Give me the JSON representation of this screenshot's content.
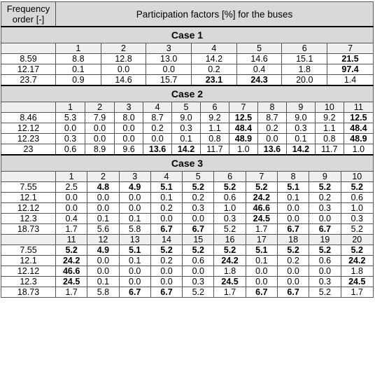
{
  "header": {
    "freq_col": "Frequency order [-]",
    "main": "Participation factors [%] for the buses"
  },
  "cases": [
    {
      "title": "Case 1",
      "blocks": [
        {
          "buses": [
            "1",
            "2",
            "3",
            "4",
            "5",
            "6",
            "7"
          ],
          "rows": [
            {
              "freq": "8.59",
              "values": [
                "8.8",
                "12.8",
                "13.0",
                "14.2",
                "14.6",
                "15.1",
                "21.5"
              ],
              "bold": [
                6
              ]
            },
            {
              "freq": "12.17",
              "values": [
                "0.1",
                "0.0",
                "0.0",
                "0.2",
                "0.4",
                "1.8",
                "97.4"
              ],
              "bold": [
                6
              ]
            },
            {
              "freq": "23.7",
              "values": [
                "0.9",
                "14.6",
                "15.7",
                "23.1",
                "24.3",
                "20.0",
                "1.4"
              ],
              "bold": [
                3,
                4
              ]
            }
          ]
        }
      ]
    },
    {
      "title": "Case 2",
      "blocks": [
        {
          "buses": [
            "1",
            "2",
            "3",
            "4",
            "5",
            "6",
            "7",
            "8",
            "9",
            "10",
            "11"
          ],
          "rows": [
            {
              "freq": "8.46",
              "values": [
                "5.3",
                "7.9",
                "8.0",
                "8.7",
                "9.0",
                "9.2",
                "12.5",
                "8.7",
                "9.0",
                "9.2",
                "12.5"
              ],
              "bold": [
                6,
                10
              ]
            },
            {
              "freq": "12.12",
              "values": [
                "0.0",
                "0.0",
                "0.0",
                "0.2",
                "0.3",
                "1.1",
                "48.4",
                "0.2",
                "0.3",
                "1.1",
                "48.4"
              ],
              "bold": [
                6,
                10
              ]
            },
            {
              "freq": "12.23",
              "values": [
                "0.3",
                "0.0",
                "0.0",
                "0.0",
                "0.1",
                "0.8",
                "48.9",
                "0.0",
                "0.1",
                "0.8",
                "48.9"
              ],
              "bold": [
                6,
                10
              ]
            },
            {
              "freq": "23",
              "values": [
                "0.6",
                "8.9",
                "9.6",
                "13.6",
                "14.2",
                "11.7",
                "1.0",
                "13.6",
                "14.2",
                "11.7",
                "1.0"
              ],
              "bold": [
                3,
                4,
                7,
                8
              ]
            }
          ]
        }
      ]
    },
    {
      "title": "Case 3",
      "blocks": [
        {
          "buses": [
            "1",
            "2",
            "3",
            "4",
            "5",
            "6",
            "7",
            "8",
            "9",
            "10"
          ],
          "rows": [
            {
              "freq": "7.55",
              "values": [
                "2.5",
                "4.8",
                "4.9",
                "5.1",
                "5.2",
                "5.2",
                "5.2",
                "5.1",
                "5.2",
                "5.2"
              ],
              "bold": [
                1,
                2,
                3,
                4,
                5,
                6,
                7,
                8,
                9
              ]
            },
            {
              "freq": "12.1",
              "values": [
                "0.0",
                "0.0",
                "0.0",
                "0.1",
                "0.2",
                "0.6",
                "24.2",
                "0.1",
                "0.2",
                "0.6"
              ],
              "bold": [
                6
              ]
            },
            {
              "freq": "12.12",
              "values": [
                "0.0",
                "0.0",
                "0.0",
                "0.2",
                "0.3",
                "1.0",
                "46.6",
                "0.0",
                "0.3",
                "1.0"
              ],
              "bold": [
                6
              ]
            },
            {
              "freq": "12.3",
              "values": [
                "0.4",
                "0.1",
                "0.1",
                "0.0",
                "0.0",
                "0.3",
                "24.5",
                "0.0",
                "0.0",
                "0.3"
              ],
              "bold": [
                6
              ]
            },
            {
              "freq": "18.73",
              "values": [
                "1.7",
                "5.6",
                "5.8",
                "6.7",
                "6.7",
                "5.2",
                "1.7",
                "6.7",
                "6.7",
                "5.2"
              ],
              "bold": [
                3,
                4,
                7,
                8
              ]
            }
          ]
        },
        {
          "buses": [
            "11",
            "12",
            "13",
            "14",
            "15",
            "16",
            "17",
            "18",
            "19",
            "20"
          ],
          "rows": [
            {
              "freq": "7.55",
              "values": [
                "5.2",
                "4.9",
                "5.1",
                "5.2",
                "5.2",
                "5.2",
                "5.1",
                "5.2",
                "5.2",
                "5.2"
              ],
              "bold": [
                0,
                1,
                2,
                3,
                4,
                5,
                6,
                7,
                8,
                9
              ]
            },
            {
              "freq": "12.1",
              "values": [
                "24.2",
                "0.0",
                "0.1",
                "0.2",
                "0.6",
                "24.2",
                "0.1",
                "0.2",
                "0.6",
                "24.2"
              ],
              "bold": [
                0,
                5,
                9
              ]
            },
            {
              "freq": "12.12",
              "values": [
                "46.6",
                "0.0",
                "0.0",
                "0.0",
                "0.0",
                "1.8",
                "0.0",
                "0.0",
                "0.0",
                "1.8"
              ],
              "bold": [
                0
              ]
            },
            {
              "freq": "12.3",
              "values": [
                "24.5",
                "0.1",
                "0.0",
                "0.0",
                "0.3",
                "24.5",
                "0.0",
                "0.0",
                "0.3",
                "24.5"
              ],
              "bold": [
                0,
                5,
                9
              ]
            },
            {
              "freq": "18.73",
              "values": [
                "1.7",
                "5.8",
                "6.7",
                "6.7",
                "5.2",
                "1.7",
                "6.7",
                "6.7",
                "5.2",
                "1.7"
              ],
              "bold": [
                2,
                3,
                6,
                7
              ]
            }
          ]
        }
      ]
    }
  ]
}
